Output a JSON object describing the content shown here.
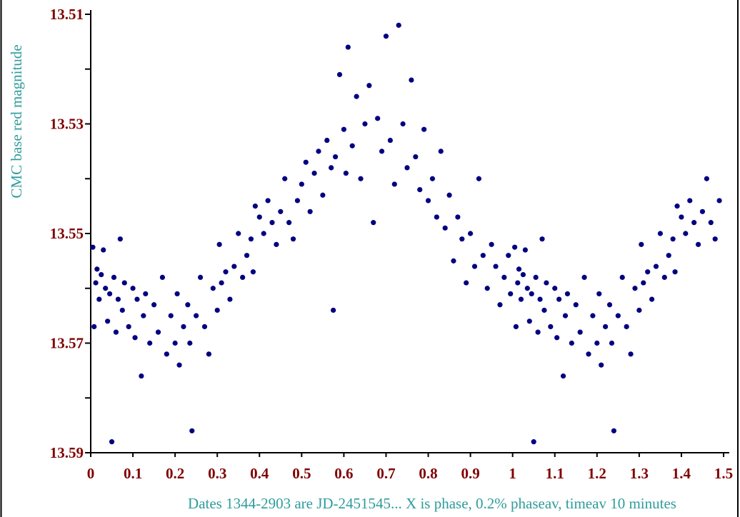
{
  "chart_data": {
    "type": "scatter",
    "xlabel": "Dates  1344-2903 are JD-2451545... X is phase, 0.2% phaseav, timeav  10 minutes",
    "ylabel": "CMC base red magnitude",
    "color": "#000080",
    "y_inverted": true,
    "xlim": [
      0,
      1.5
    ],
    "ylim": [
      13.51,
      13.59
    ],
    "xticks": [
      0,
      0.1,
      0.2,
      0.3,
      0.4,
      0.5,
      0.6,
      0.7,
      0.8,
      0.9,
      1,
      1.1,
      1.2,
      1.3,
      1.4,
      1.5
    ],
    "yticks": [
      13.51,
      13.53,
      13.55,
      13.57,
      13.59
    ],
    "yminorticks": [
      13.52,
      13.54,
      13.56,
      13.58
    ],
    "x": [
      0.005,
      0.008,
      0.012,
      0.015,
      0.02,
      0.025,
      0.03,
      0.035,
      0.04,
      0.045,
      0.05,
      0.055,
      0.06,
      0.065,
      0.07,
      0.075,
      0.08,
      0.09,
      0.1,
      0.105,
      0.11,
      0.12,
      0.125,
      0.13,
      0.14,
      0.15,
      0.16,
      0.17,
      0.18,
      0.19,
      0.2,
      0.205,
      0.21,
      0.22,
      0.23,
      0.235,
      0.24,
      0.25,
      0.26,
      0.27,
      0.28,
      0.29,
      0.3,
      0.305,
      0.31,
      0.32,
      0.33,
      0.34,
      0.35,
      0.36,
      0.37,
      0.38,
      0.385,
      0.39,
      0.4,
      0.41,
      0.42,
      0.43,
      0.44,
      0.45,
      0.46,
      0.47,
      0.48,
      0.49,
      0.5,
      0.51,
      0.52,
      0.53,
      0.54,
      0.55,
      0.56,
      0.57,
      0.575,
      0.58,
      0.59,
      0.6,
      0.605,
      0.61,
      0.62,
      0.63,
      0.64,
      0.65,
      0.66,
      0.67,
      0.68,
      0.69,
      0.7,
      0.71,
      0.72,
      0.73,
      0.74,
      0.75,
      0.76,
      0.77,
      0.78,
      0.79,
      0.8,
      0.81,
      0.82,
      0.83,
      0.84,
      0.85,
      0.86,
      0.87,
      0.88,
      0.89,
      0.9,
      0.91,
      0.92,
      0.93,
      0.94,
      0.95,
      0.96,
      0.97,
      0.98,
      0.99,
      0.995,
      1.005,
      1.008,
      1.012,
      1.015,
      1.02,
      1.025,
      1.03,
      1.035,
      1.04,
      1.045,
      1.05,
      1.055,
      1.06,
      1.065,
      1.07,
      1.075,
      1.08,
      1.09,
      1.1,
      1.105,
      1.11,
      1.12,
      1.125,
      1.13,
      1.14,
      1.15,
      1.16,
      1.17,
      1.18,
      1.19,
      1.2,
      1.205,
      1.21,
      1.22,
      1.23,
      1.235,
      1.24,
      1.25,
      1.26,
      1.27,
      1.28,
      1.29,
      1.3,
      1.305,
      1.31,
      1.32,
      1.33,
      1.34,
      1.35,
      1.36,
      1.37,
      1.38,
      1.385,
      1.39,
      1.4,
      1.41,
      1.42,
      1.43,
      1.44,
      1.45,
      1.46,
      1.47,
      1.48,
      1.49
    ],
    "y": [
      13.5525,
      13.567,
      13.559,
      13.5565,
      13.562,
      13.5575,
      13.553,
      13.56,
      13.566,
      13.561,
      13.588,
      13.558,
      13.568,
      13.562,
      13.551,
      13.564,
      13.559,
      13.567,
      13.56,
      13.569,
      13.562,
      13.576,
      13.565,
      13.561,
      13.57,
      13.563,
      13.568,
      13.558,
      13.572,
      13.565,
      13.57,
      13.561,
      13.574,
      13.567,
      13.563,
      13.57,
      13.586,
      13.565,
      13.558,
      13.567,
      13.572,
      13.56,
      13.564,
      13.552,
      13.559,
      13.557,
      13.562,
      13.556,
      13.55,
      13.558,
      13.554,
      13.551,
      13.557,
      13.545,
      13.547,
      13.55,
      13.544,
      13.548,
      13.552,
      13.546,
      13.54,
      13.548,
      13.551,
      13.544,
      13.541,
      13.537,
      13.546,
      13.539,
      13.535,
      13.543,
      13.533,
      13.538,
      13.564,
      13.536,
      13.521,
      13.531,
      13.539,
      13.516,
      13.534,
      13.525,
      13.54,
      13.53,
      13.523,
      13.548,
      13.529,
      13.535,
      13.514,
      13.533,
      13.541,
      13.512,
      13.53,
      13.538,
      13.522,
      13.536,
      13.542,
      13.531,
      13.544,
      13.54,
      13.547,
      13.535,
      13.549,
      13.543,
      13.555,
      13.547,
      13.551,
      13.559,
      13.55,
      13.556,
      13.54,
      13.554,
      13.56,
      13.552,
      13.556,
      13.563,
      13.558,
      13.554,
      13.561,
      13.5525,
      13.567,
      13.559,
      13.5565,
      13.562,
      13.5575,
      13.553,
      13.56,
      13.566,
      13.561,
      13.588,
      13.558,
      13.568,
      13.562,
      13.551,
      13.564,
      13.559,
      13.567,
      13.56,
      13.569,
      13.562,
      13.576,
      13.565,
      13.561,
      13.57,
      13.563,
      13.568,
      13.558,
      13.572,
      13.565,
      13.57,
      13.561,
      13.574,
      13.567,
      13.563,
      13.57,
      13.586,
      13.565,
      13.558,
      13.567,
      13.572,
      13.56,
      13.564,
      13.552,
      13.559,
      13.557,
      13.562,
      13.556,
      13.55,
      13.558,
      13.554,
      13.551,
      13.557,
      13.545,
      13.547,
      13.55,
      13.544,
      13.548,
      13.552,
      13.546,
      13.54,
      13.548,
      13.551,
      13.544
    ]
  }
}
